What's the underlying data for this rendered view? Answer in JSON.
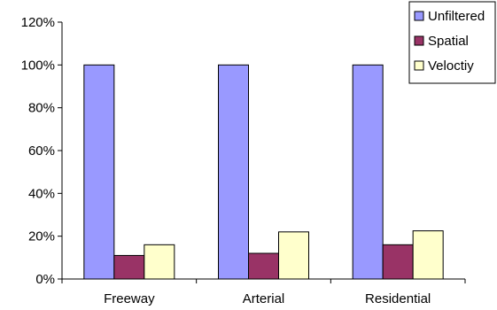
{
  "chart_data": {
    "type": "bar",
    "categories": [
      "Freeway",
      "Arterial",
      "Residential"
    ],
    "series": [
      {
        "name": "Unfiltered",
        "values": [
          100,
          100,
          100
        ],
        "color": "#9999ff"
      },
      {
        "name": "Spatial",
        "values": [
          11,
          12,
          16
        ],
        "color": "#993366"
      },
      {
        "name": "Velोctiy",
        "values": [
          16,
          22,
          22.5
        ],
        "color": "#ffffcc"
      }
    ],
    "ylim": [
      0,
      120
    ],
    "yticks": [
      "0%",
      "20%",
      "40%",
      "60%",
      "80%",
      "100%",
      "120%"
    ],
    "grid": false,
    "legend": "top-right"
  }
}
